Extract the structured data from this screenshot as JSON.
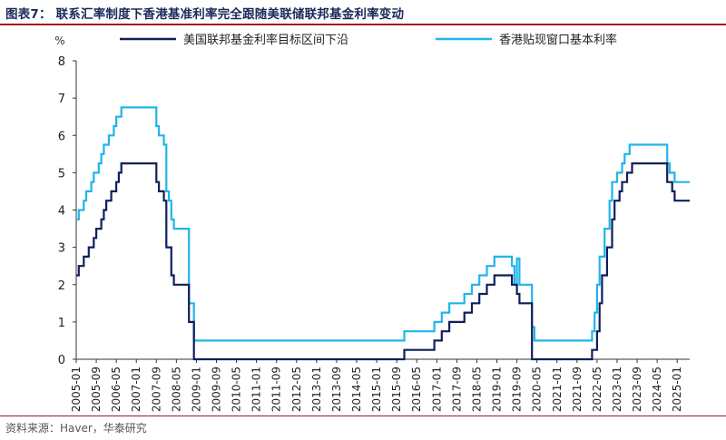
{
  "figure": {
    "title": "图表7：  联系汇率制度下香港基准利率完全跟随美联储联邦基金利率变动",
    "source": "资料来源：Haver，华泰研究"
  },
  "colors": {
    "series1": "#0f1f5c",
    "series2": "#1fb5ea",
    "accent": "#9b1c1c",
    "axis": "#333333"
  },
  "chart_data": {
    "type": "line",
    "title": "联系汇率制度下香港基准利率完全跟随美联储联邦基金利率变动",
    "ylabel": "%",
    "xlabel": "",
    "ylim": [
      0,
      8
    ],
    "yticks": [
      0,
      1,
      2,
      3,
      4,
      5,
      6,
      7,
      8
    ],
    "xlim": [
      "2005-01",
      "2025-06"
    ],
    "xtick_labels": [
      "2005-01",
      "2005-09",
      "2006-05",
      "2007-01",
      "2007-09",
      "2008-05",
      "2009-01",
      "2009-09",
      "2010-05",
      "2011-01",
      "2011-09",
      "2012-05",
      "2013-01",
      "2013-09",
      "2014-05",
      "2015-01",
      "2015-09",
      "2016-05",
      "2017-01",
      "2017-09",
      "2018-05",
      "2019-01",
      "2019-09",
      "2020-05",
      "2021-01",
      "2021-09",
      "2022-05",
      "2023-01",
      "2023-09",
      "2024-05",
      "2025-01"
    ],
    "legend_position": "top",
    "grid": false,
    "series": [
      {
        "name": "美国联邦基金利率目标区间下沿",
        "points": [
          [
            "2005-01",
            2.25
          ],
          [
            "2005-02",
            2.5
          ],
          [
            "2005-03",
            2.5
          ],
          [
            "2005-04",
            2.75
          ],
          [
            "2005-05",
            2.75
          ],
          [
            "2005-06",
            3.0
          ],
          [
            "2005-07",
            3.0
          ],
          [
            "2005-08",
            3.25
          ],
          [
            "2005-09",
            3.5
          ],
          [
            "2005-10",
            3.5
          ],
          [
            "2005-11",
            3.75
          ],
          [
            "2005-12",
            4.0
          ],
          [
            "2006-01",
            4.25
          ],
          [
            "2006-02",
            4.25
          ],
          [
            "2006-03",
            4.5
          ],
          [
            "2006-04",
            4.5
          ],
          [
            "2006-05",
            4.75
          ],
          [
            "2006-06",
            5.0
          ],
          [
            "2006-07",
            5.25
          ],
          [
            "2007-08",
            5.25
          ],
          [
            "2007-09",
            4.75
          ],
          [
            "2007-10",
            4.5
          ],
          [
            "2007-12",
            4.25
          ],
          [
            "2008-01",
            3.0
          ],
          [
            "2008-02",
            3.0
          ],
          [
            "2008-03",
            2.25
          ],
          [
            "2008-04",
            2.0
          ],
          [
            "2008-09",
            2.0
          ],
          [
            "2008-10",
            1.0
          ],
          [
            "2008-11",
            1.0
          ],
          [
            "2008-12",
            0.0
          ],
          [
            "2015-11",
            0.0
          ],
          [
            "2015-12",
            0.25
          ],
          [
            "2016-11",
            0.25
          ],
          [
            "2016-12",
            0.5
          ],
          [
            "2017-02",
            0.5
          ],
          [
            "2017-03",
            0.75
          ],
          [
            "2017-05",
            0.75
          ],
          [
            "2017-06",
            1.0
          ],
          [
            "2017-11",
            1.0
          ],
          [
            "2017-12",
            1.25
          ],
          [
            "2018-02",
            1.25
          ],
          [
            "2018-03",
            1.5
          ],
          [
            "2018-05",
            1.5
          ],
          [
            "2018-06",
            1.75
          ],
          [
            "2018-08",
            1.75
          ],
          [
            "2018-09",
            2.0
          ],
          [
            "2018-11",
            2.0
          ],
          [
            "2018-12",
            2.25
          ],
          [
            "2019-06",
            2.25
          ],
          [
            "2019-07",
            2.0
          ],
          [
            "2019-08",
            2.0
          ],
          [
            "2019-09",
            1.75
          ],
          [
            "2019-10",
            1.5
          ],
          [
            "2020-02",
            1.5
          ],
          [
            "2020-03",
            0.0
          ],
          [
            "2022-02",
            0.0
          ],
          [
            "2022-03",
            0.25
          ],
          [
            "2022-04",
            0.25
          ],
          [
            "2022-05",
            0.75
          ],
          [
            "2022-06",
            1.5
          ],
          [
            "2022-07",
            2.25
          ],
          [
            "2022-08",
            2.25
          ],
          [
            "2022-09",
            3.0
          ],
          [
            "2022-10",
            3.0
          ],
          [
            "2022-11",
            3.75
          ],
          [
            "2022-12",
            4.25
          ],
          [
            "2023-01",
            4.25
          ],
          [
            "2023-02",
            4.5
          ],
          [
            "2023-03",
            4.75
          ],
          [
            "2023-04",
            4.75
          ],
          [
            "2023-05",
            5.0
          ],
          [
            "2023-06",
            5.0
          ],
          [
            "2023-07",
            5.25
          ],
          [
            "2024-08",
            5.25
          ],
          [
            "2024-09",
            4.75
          ],
          [
            "2024-10",
            4.75
          ],
          [
            "2024-11",
            4.5
          ],
          [
            "2024-12",
            4.25
          ],
          [
            "2025-06",
            4.25
          ]
        ]
      },
      {
        "name": "香港贴现窗口基本利率",
        "points": [
          [
            "2005-01",
            3.75
          ],
          [
            "2005-02",
            4.0
          ],
          [
            "2005-03",
            4.0
          ],
          [
            "2005-04",
            4.25
          ],
          [
            "2005-05",
            4.5
          ],
          [
            "2005-06",
            4.5
          ],
          [
            "2005-07",
            4.75
          ],
          [
            "2005-08",
            5.0
          ],
          [
            "2005-09",
            5.0
          ],
          [
            "2005-10",
            5.25
          ],
          [
            "2005-11",
            5.5
          ],
          [
            "2005-12",
            5.75
          ],
          [
            "2006-01",
            5.75
          ],
          [
            "2006-02",
            6.0
          ],
          [
            "2006-03",
            6.0
          ],
          [
            "2006-04",
            6.25
          ],
          [
            "2006-05",
            6.5
          ],
          [
            "2006-06",
            6.5
          ],
          [
            "2006-07",
            6.75
          ],
          [
            "2007-08",
            6.75
          ],
          [
            "2007-09",
            6.25
          ],
          [
            "2007-10",
            6.0
          ],
          [
            "2007-12",
            5.75
          ],
          [
            "2008-01",
            4.5
          ],
          [
            "2008-02",
            4.25
          ],
          [
            "2008-03",
            3.75
          ],
          [
            "2008-04",
            3.5
          ],
          [
            "2008-09",
            3.5
          ],
          [
            "2008-10",
            1.5
          ],
          [
            "2008-11",
            1.5
          ],
          [
            "2008-12",
            0.5
          ],
          [
            "2015-11",
            0.5
          ],
          [
            "2015-12",
            0.75
          ],
          [
            "2016-11",
            0.75
          ],
          [
            "2016-12",
            1.0
          ],
          [
            "2017-02",
            1.0
          ],
          [
            "2017-03",
            1.25
          ],
          [
            "2017-05",
            1.25
          ],
          [
            "2017-06",
            1.5
          ],
          [
            "2017-11",
            1.5
          ],
          [
            "2017-12",
            1.75
          ],
          [
            "2018-02",
            1.75
          ],
          [
            "2018-03",
            2.0
          ],
          [
            "2018-05",
            2.0
          ],
          [
            "2018-06",
            2.25
          ],
          [
            "2018-08",
            2.25
          ],
          [
            "2018-09",
            2.5
          ],
          [
            "2018-11",
            2.5
          ],
          [
            "2018-12",
            2.75
          ],
          [
            "2019-06",
            2.75
          ],
          [
            "2019-07",
            2.5
          ],
          [
            "2019-08",
            2.0
          ],
          [
            "2019-09",
            2.7
          ],
          [
            "2019-10",
            2.0
          ],
          [
            "2020-02",
            2.0
          ],
          [
            "2020-03",
            0.86
          ],
          [
            "2020-04",
            0.5
          ],
          [
            "2022-02",
            0.5
          ],
          [
            "2022-03",
            0.75
          ],
          [
            "2022-04",
            1.25
          ],
          [
            "2022-05",
            2.0
          ],
          [
            "2022-06",
            2.75
          ],
          [
            "2022-07",
            2.75
          ],
          [
            "2022-08",
            3.5
          ],
          [
            "2022-09",
            3.5
          ],
          [
            "2022-10",
            4.25
          ],
          [
            "2022-11",
            4.75
          ],
          [
            "2022-12",
            4.75
          ],
          [
            "2023-01",
            5.0
          ],
          [
            "2023-02",
            5.0
          ],
          [
            "2023-03",
            5.25
          ],
          [
            "2023-04",
            5.5
          ],
          [
            "2023-05",
            5.5
          ],
          [
            "2023-06",
            5.75
          ],
          [
            "2024-08",
            5.75
          ],
          [
            "2024-09",
            5.25
          ],
          [
            "2024-10",
            5.0
          ],
          [
            "2024-11",
            5.0
          ],
          [
            "2024-12",
            4.75
          ],
          [
            "2025-06",
            4.75
          ]
        ]
      }
    ]
  }
}
